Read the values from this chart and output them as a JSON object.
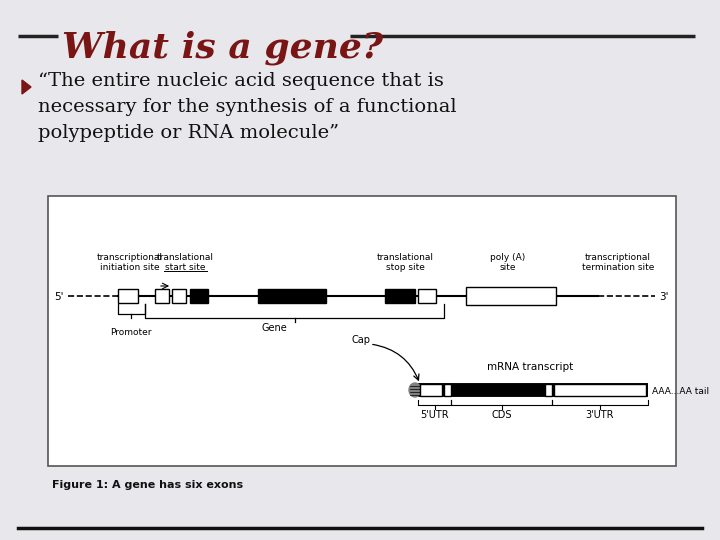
{
  "bg_color": "#e8e8ec",
  "title": "What is a gene?",
  "title_color": "#7a1515",
  "title_line_color": "#222222",
  "bullet_color": "#7a1515",
  "bullet_text_lines": [
    "“The entire nucleic acid sequence that is",
    "necessary for the synthesis of a functional",
    "polypeptide or RNA molecule”"
  ],
  "figure_caption": "Figure 1: A gene has six exons",
  "bottom_line_color": "#111111",
  "text_color": "#111111"
}
